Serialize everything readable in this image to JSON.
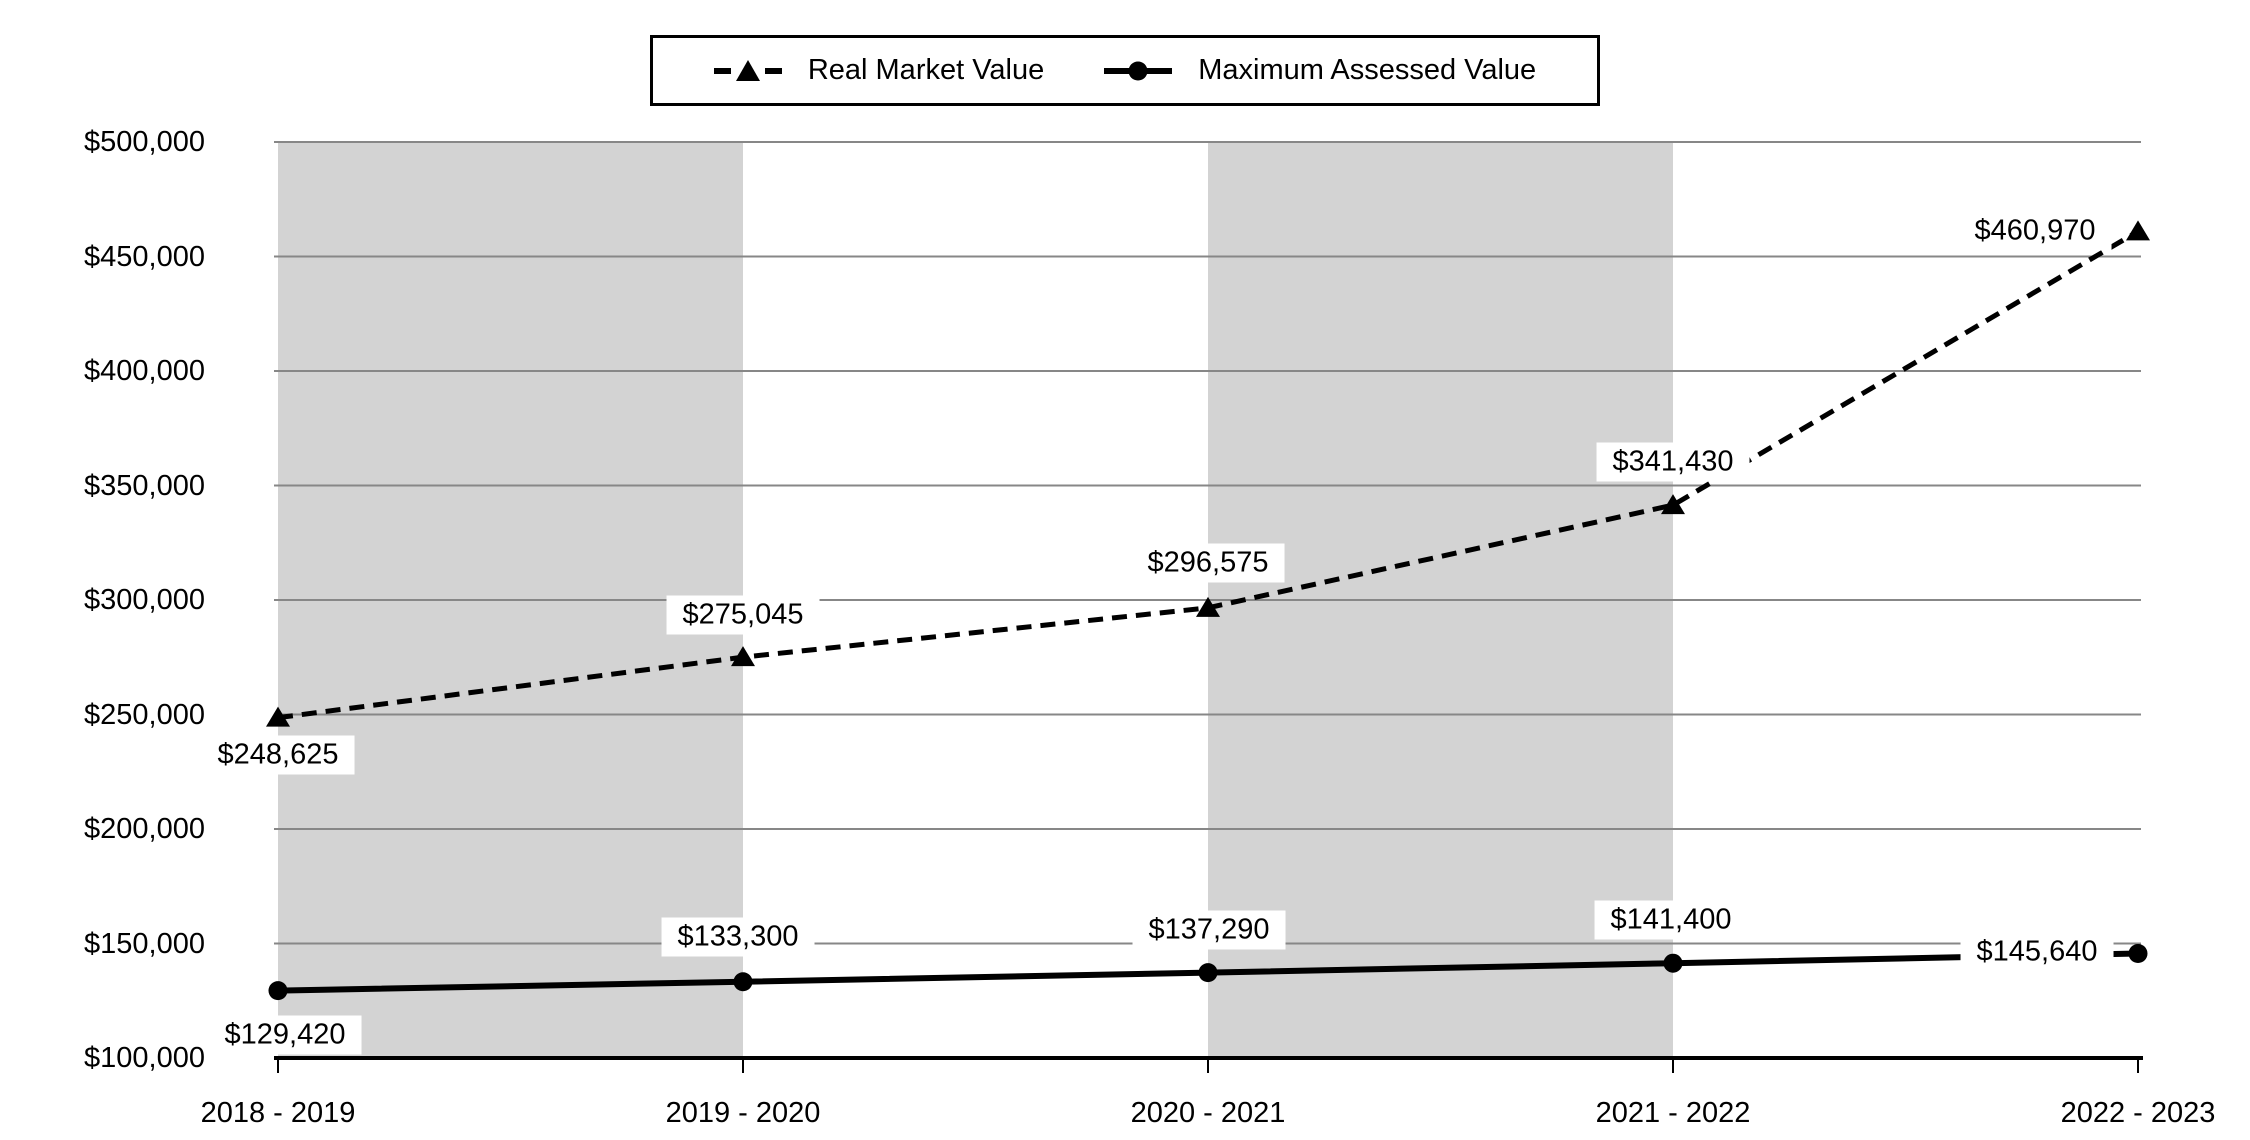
{
  "chart_data": {
    "type": "line",
    "title": "",
    "xlabel": "",
    "ylabel": "",
    "categories": [
      "2018 - 2019",
      "2019 - 2020",
      "2020 - 2021",
      "2021 - 2022",
      "2022 - 2023"
    ],
    "series": [
      {
        "name": "Real Market Value",
        "style": "dashed",
        "marker": "triangle",
        "values": [
          248625,
          275045,
          296575,
          341430,
          460970
        ],
        "data_labels": [
          "$248,625",
          "$275,045",
          "$296,575",
          "$341,430",
          "$460,970"
        ]
      },
      {
        "name": "Maximum Assessed Value",
        "style": "solid",
        "marker": "circle",
        "values": [
          129420,
          133300,
          137290,
          141400,
          145640
        ],
        "data_labels": [
          "$129,420",
          "$133,300",
          "$137,290",
          "$141,400",
          "$145,640"
        ]
      }
    ],
    "ylim": [
      100000,
      500000
    ],
    "ytick_step": 50000,
    "ytick_labels": [
      "$100,000",
      "$150,000",
      "$200,000",
      "$250,000",
      "$300,000",
      "$350,000",
      "$400,000",
      "$450,000",
      "$500,000"
    ],
    "grid": true,
    "legend_position": "top-center",
    "banded_columns": [
      [
        0,
        1
      ],
      [
        2,
        3
      ]
    ]
  },
  "colors": {
    "line": "#000000",
    "text": "#000000",
    "gridline": "#878787",
    "band": "#d3d3d3",
    "axis": "#000000",
    "background": "#ffffff",
    "label_background": "#ffffff"
  }
}
